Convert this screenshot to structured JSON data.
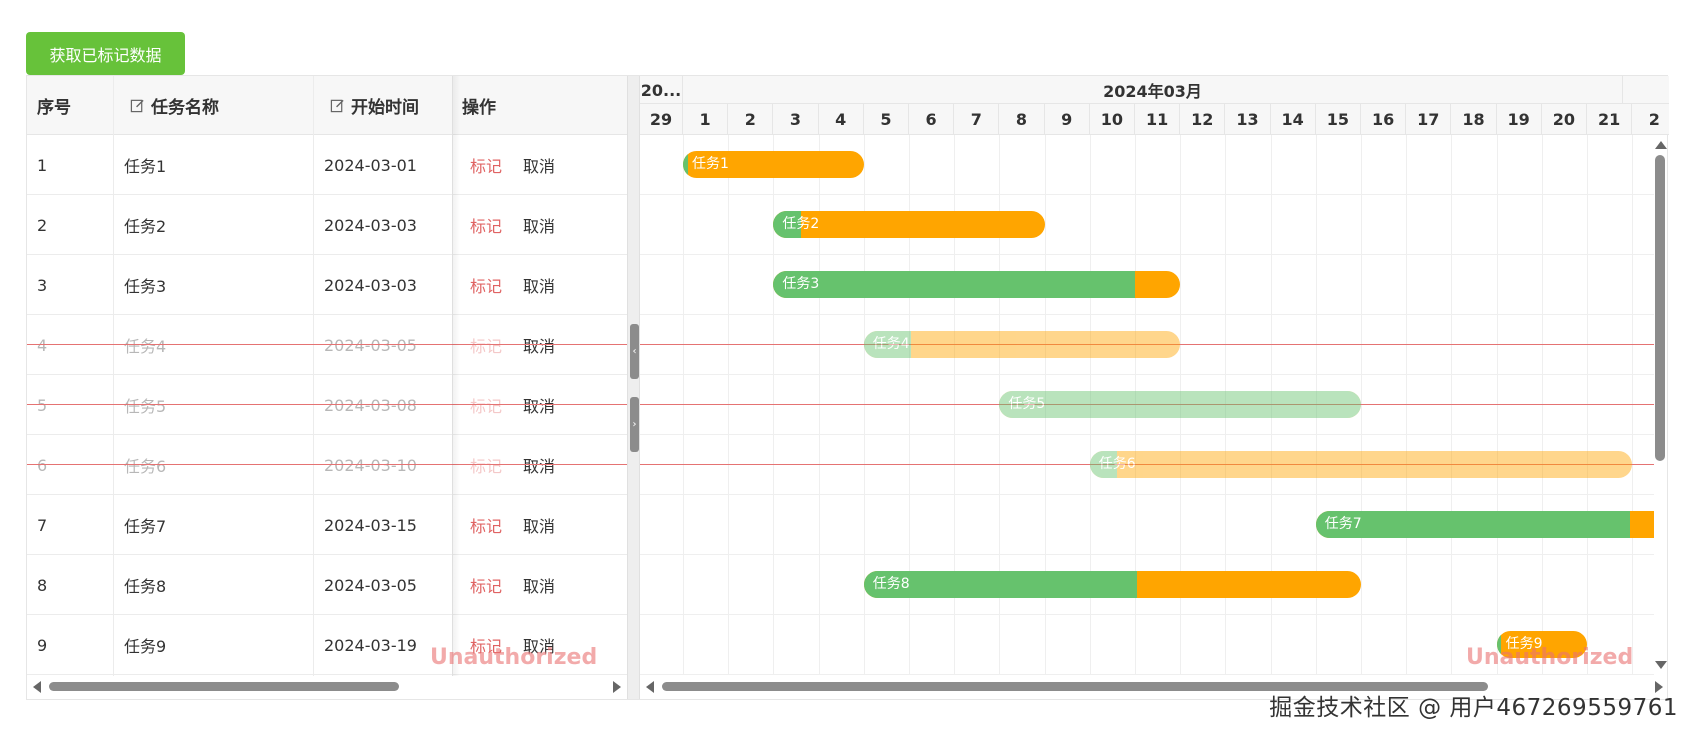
{
  "toolbar": {
    "fetch_marked_label": "获取已标记数据"
  },
  "table": {
    "headers": {
      "index": "序号",
      "name": "任务名称",
      "start": "开始时间",
      "ops": "操作"
    },
    "rows": [
      {
        "index": "1",
        "name": "任务1",
        "start": "2024-03-01",
        "mark": "标记",
        "cancel": "取消",
        "struck": false
      },
      {
        "index": "2",
        "name": "任务2",
        "start": "2024-03-03",
        "mark": "标记",
        "cancel": "取消",
        "struck": false
      },
      {
        "index": "3",
        "name": "任务3",
        "start": "2024-03-03",
        "mark": "标记",
        "cancel": "取消",
        "struck": false
      },
      {
        "index": "4",
        "name": "任务4",
        "start": "2024-03-05",
        "mark": "标记",
        "cancel": "取消",
        "struck": true
      },
      {
        "index": "5",
        "name": "任务5",
        "start": "2024-03-08",
        "mark": "标记",
        "cancel": "取消",
        "struck": true
      },
      {
        "index": "6",
        "name": "任务6",
        "start": "2024-03-10",
        "mark": "标记",
        "cancel": "取消",
        "struck": true
      },
      {
        "index": "7",
        "name": "任务7",
        "start": "2024-03-15",
        "mark": "标记",
        "cancel": "取消",
        "struck": false
      },
      {
        "index": "8",
        "name": "任务8",
        "start": "2024-03-05",
        "mark": "标记",
        "cancel": "取消",
        "struck": false
      },
      {
        "index": "9",
        "name": "任务9",
        "start": "2024-03-19",
        "mark": "标记",
        "cancel": "取消",
        "struck": false
      }
    ]
  },
  "gantt": {
    "months": [
      "20...",
      "2024年03月"
    ],
    "days": [
      "29",
      "1",
      "2",
      "3",
      "4",
      "5",
      "6",
      "7",
      "8",
      "9",
      "10",
      "11",
      "12",
      "13",
      "14",
      "15",
      "16",
      "17",
      "18",
      "19",
      "20",
      "21",
      "2"
    ],
    "tasks": [
      {
        "label": "任务1",
        "start": "2024-03-01",
        "end": "2024-03-04",
        "progress": 0.03,
        "faded": false
      },
      {
        "label": "任务2",
        "start": "2024-03-03",
        "end": "2024-03-08",
        "progress": 0.1,
        "faded": false
      },
      {
        "label": "任务3",
        "start": "2024-03-03",
        "end": "2024-03-11",
        "progress": 0.89,
        "faded": false
      },
      {
        "label": "任务4",
        "start": "2024-03-05",
        "end": "2024-03-11",
        "progress": 0.15,
        "faded": true
      },
      {
        "label": "任务5",
        "start": "2024-03-08",
        "end": "2024-03-15",
        "progress": 1.0,
        "faded": true
      },
      {
        "label": "任务6",
        "start": "2024-03-10",
        "end": "2024-03-21",
        "progress": 0.05,
        "faded": true
      },
      {
        "label": "任务7",
        "start": "2024-03-15",
        "end": "2024-03-22",
        "progress": 0.93,
        "faded": false
      },
      {
        "label": "任务8",
        "start": "2024-03-05",
        "end": "2024-03-15",
        "progress": 0.55,
        "faded": false
      },
      {
        "label": "任务9",
        "start": "2024-03-19",
        "end": "2024-03-20",
        "progress": 0.05,
        "faded": false
      }
    ]
  },
  "watermarks": [
    "Unauthorized",
    "Unauthorized"
  ],
  "credit": "掘金技术社区 @ 用户467269559761",
  "colors": {
    "progress": "#66c26d",
    "remaining": "#ffa500",
    "mark": "#e06363",
    "button": "#67c23a"
  }
}
